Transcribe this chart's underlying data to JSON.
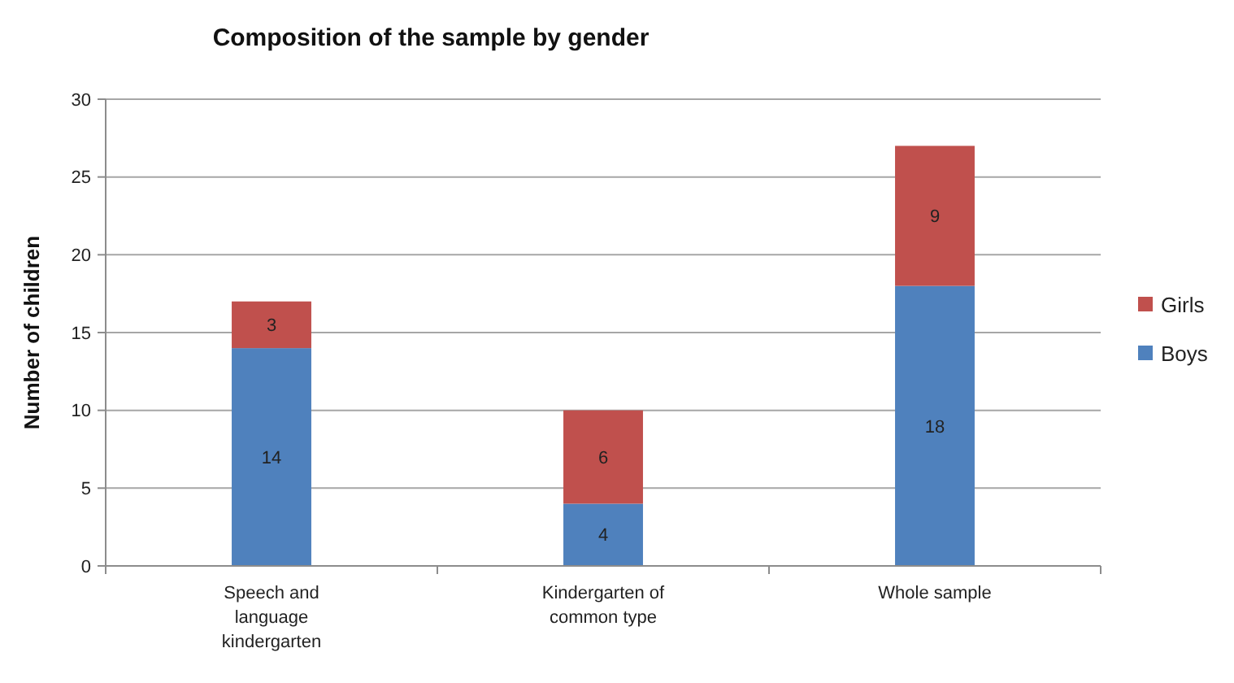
{
  "chart_data": {
    "type": "bar",
    "title": "Composition of the sample by gender",
    "ylabel": "Number of children",
    "categories": [
      "Speech and language kindergarten",
      "Kindergarten of common type",
      "Whole sample"
    ],
    "series": [
      {
        "name": "Boys",
        "color": "#4f81bd",
        "values": [
          14,
          4,
          18
        ]
      },
      {
        "name": "Girls",
        "color": "#c0504d",
        "values": [
          3,
          6,
          9
        ]
      }
    ],
    "stacked": true,
    "ylim": [
      0,
      30
    ],
    "yticks": [
      0,
      5,
      10,
      15,
      20,
      25,
      30
    ],
    "grid": "y",
    "legend": "right",
    "data_labels": true
  }
}
